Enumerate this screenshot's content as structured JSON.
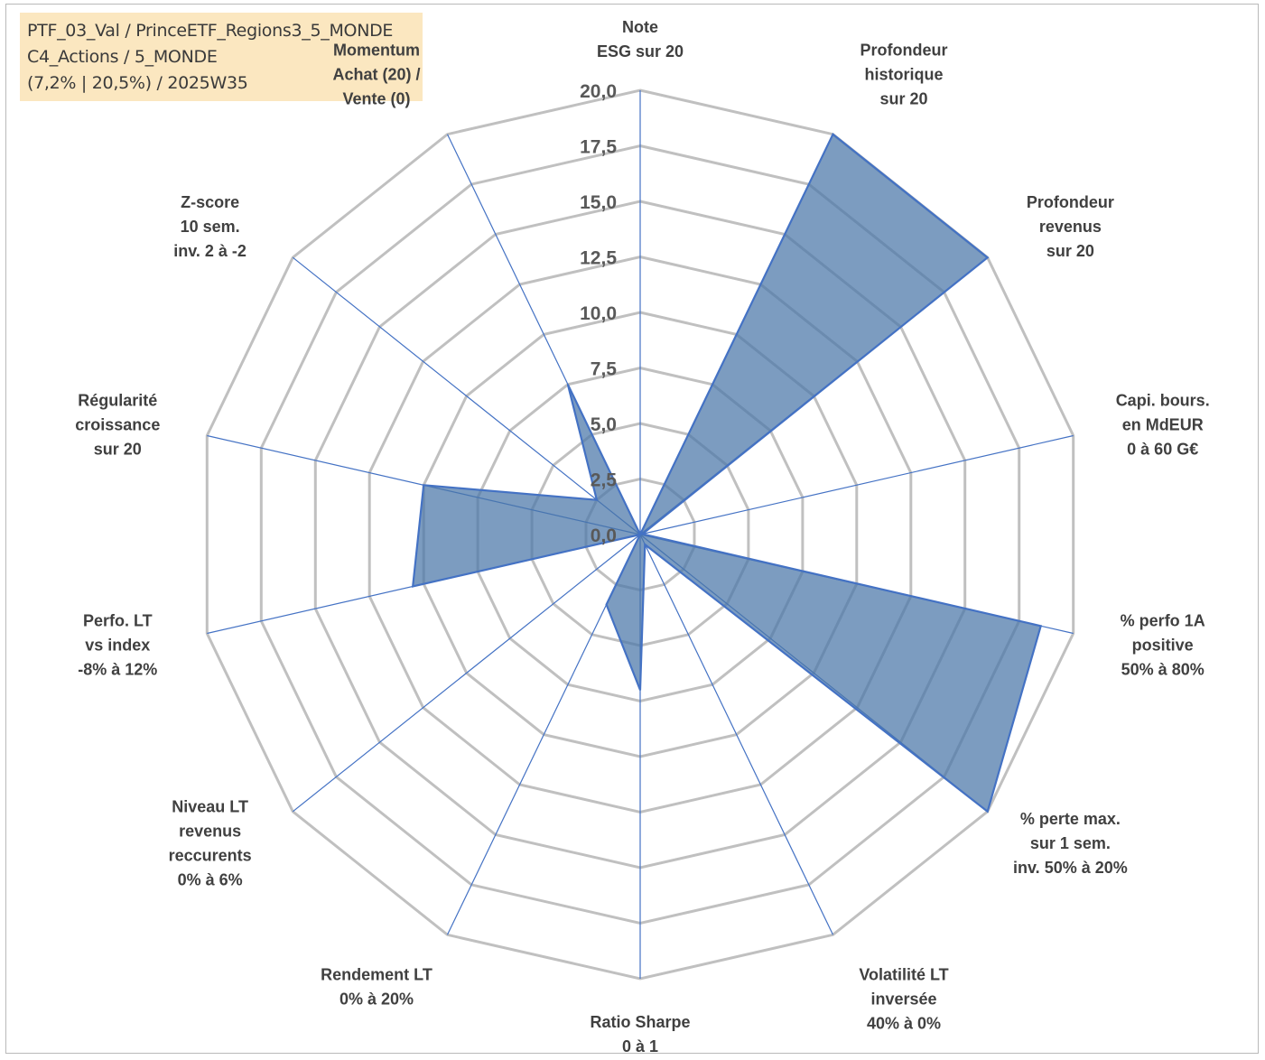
{
  "info_box": {
    "line1": "PTF_03_Val / PrinceETF_Regions3_5_MONDE",
    "line2": "C4_Actions / 5_MONDE",
    "line3": "(7,2% | 20,5%) / 2025W35"
  },
  "chart_data": {
    "type": "radar",
    "rlim": [
      0,
      20
    ],
    "tick_values": [
      0,
      2.5,
      5,
      7.5,
      10,
      12.5,
      15,
      17.5,
      20
    ],
    "tick_labels": [
      "0,0",
      "2,5",
      "5,0",
      "7,5",
      "10,0",
      "12,5",
      "15,0",
      "17,5",
      "20,0"
    ],
    "axes": [
      {
        "label": [
          "Note",
          "ESG sur 20"
        ]
      },
      {
        "label": [
          "Profondeur",
          "historique",
          "sur 20"
        ]
      },
      {
        "label": [
          "Profondeur",
          "revenus",
          "sur 20"
        ]
      },
      {
        "label": [
          "Capi. bours.",
          "en MdEUR",
          "0 à 60 G€"
        ]
      },
      {
        "label": [
          "% perfo 1A",
          "positive",
          "50% à 80%"
        ]
      },
      {
        "label": [
          "% perte max.",
          "sur 1 sem.",
          "inv. 50% à 20%"
        ]
      },
      {
        "label": [
          "Volatilité LT",
          "inversée",
          "40% à 0%"
        ]
      },
      {
        "label": [
          "Ratio Sharpe",
          "0 à 1"
        ]
      },
      {
        "label": [
          "Rendement LT",
          "0% à 20%"
        ]
      },
      {
        "label": [
          "Niveau LT",
          "revenus",
          "reccurents",
          "0% à 6%"
        ]
      },
      {
        "label": [
          "Perfo. LT",
          "vs index",
          "-8% à 12%"
        ]
      },
      {
        "label": [
          "Régularité",
          "croissance",
          "sur 20"
        ]
      },
      {
        "label": [
          "Z-score",
          "10 sem.",
          "inv. 2 à -2"
        ]
      },
      {
        "label": [
          "Momentum",
          "Achat (20) /",
          "Vente (0)"
        ]
      }
    ],
    "series": [
      {
        "values": [
          0,
          20,
          20,
          0.1,
          18.5,
          20,
          0.5,
          7,
          3.5,
          0,
          10.5,
          10,
          2.5,
          7.5
        ]
      }
    ],
    "colors": {
      "fill": "#4a76a8",
      "stroke": "#4472c4",
      "grid": "#c0c0c0",
      "spoke": "#4472c4"
    },
    "grid": true
  }
}
